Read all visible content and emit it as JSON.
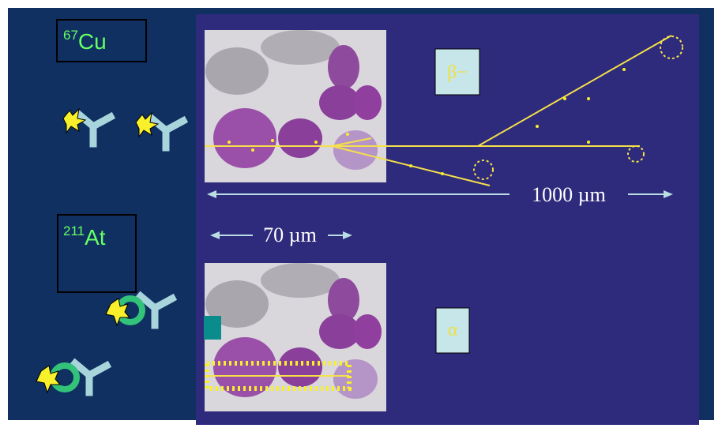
{
  "isotopes": [
    {
      "mass": "67",
      "symbol": "Cu"
    },
    {
      "mass": "211",
      "symbol": "At"
    }
  ],
  "particles": {
    "beta": "β−",
    "alpha": "α"
  },
  "scales": {
    "beta_range": "1000 µm",
    "cell_size": "70 µm"
  }
}
